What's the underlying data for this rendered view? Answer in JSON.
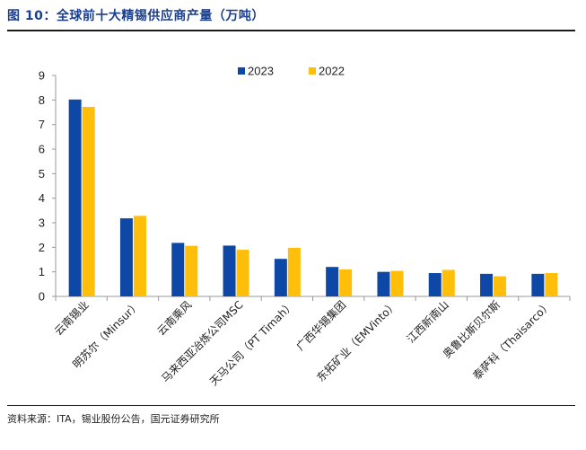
{
  "header": {
    "title": "图 10：全球前十大精锡供应商产量（万吨）"
  },
  "footer": {
    "source": "资料来源：ITA，锡业股份公告，国元证券研究所"
  },
  "colors": {
    "series_2023": "#0e48a7",
    "series_2022": "#ffbe0a",
    "title": "#1a3f8f"
  },
  "chart_data": {
    "type": "bar",
    "title": "",
    "xlabel": "",
    "ylabel": "",
    "ylim": [
      0,
      9
    ],
    "yticks": [
      0,
      1,
      2,
      3,
      4,
      5,
      6,
      7,
      8,
      9
    ],
    "legend_position": "top-center",
    "grid": false,
    "categories": [
      "云南锡业",
      "明苏尔（Minsur）",
      "云南乘风",
      "马来西亚冶炼公司MSC",
      "天马公司（PT Timah）",
      "广西华锡集团",
      "东拓矿业（EMVinto）",
      "江西新南山",
      "奥鲁比斯贝尔斯",
      "泰萨科（Thaisarco）"
    ],
    "series": [
      {
        "name": "2023",
        "values": [
          8.02,
          3.18,
          2.18,
          2.07,
          1.53,
          1.2,
          1.0,
          0.95,
          0.92,
          0.92
        ]
      },
      {
        "name": "2022",
        "values": [
          7.72,
          3.28,
          2.06,
          1.9,
          1.98,
          1.1,
          1.04,
          1.08,
          0.82,
          0.95
        ]
      }
    ]
  }
}
